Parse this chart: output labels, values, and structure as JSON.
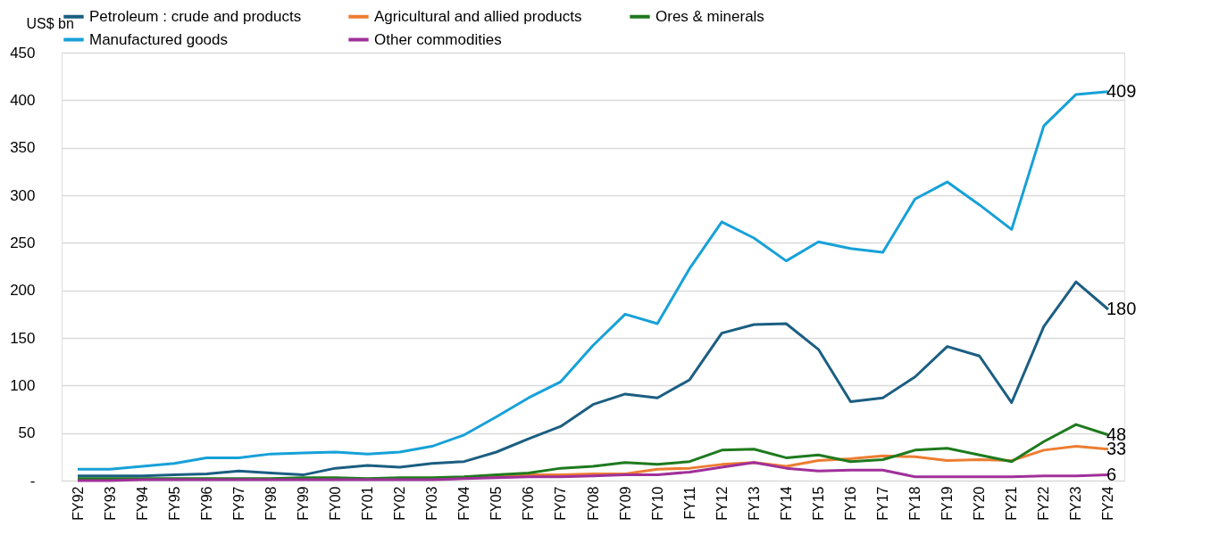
{
  "chart_data": {
    "type": "line",
    "ylabel": "US$ bn",
    "categories": [
      "FY92",
      "FY93",
      "FY94",
      "FY95",
      "FY96",
      "FY97",
      "FY98",
      "FY99",
      "FY00",
      "FY01",
      "FY02",
      "FY03",
      "FY04",
      "FY05",
      "FY06",
      "FY07",
      "FY08",
      "FY09",
      "FY10",
      "FY11",
      "FY12",
      "FY13",
      "FY14",
      "FY15",
      "FY16",
      "FY17",
      "FY18",
      "FY19",
      "FY20",
      "FY21",
      "FY22",
      "FY23",
      "FY24"
    ],
    "series": [
      {
        "name": "Petroleum : crude  and products",
        "color": "#1b5e82",
        "values": [
          5,
          5,
          5,
          6,
          7,
          10,
          8,
          6,
          13,
          16,
          14,
          18,
          20,
          30,
          44,
          57,
          80,
          91,
          87,
          106,
          155,
          164,
          165,
          138,
          83,
          87,
          109,
          141,
          131,
          82,
          162,
          209,
          180
        ],
        "value_labels": [
          null,
          null,
          null,
          null,
          null,
          null,
          null,
          null,
          null,
          null,
          null,
          null,
          null,
          null,
          null,
          null,
          null,
          null,
          null,
          null,
          null,
          null,
          null,
          null,
          null,
          null,
          null,
          null,
          null,
          null,
          null,
          null,
          "180"
        ]
      },
      {
        "name": "Agricultural and  allied products",
        "color": "#ed7d31",
        "values": [
          null,
          null,
          null,
          null,
          null,
          null,
          null,
          null,
          null,
          null,
          null,
          null,
          4,
          5,
          6,
          6,
          7,
          7,
          12,
          13,
          17,
          19,
          15,
          21,
          23,
          26,
          25,
          21,
          22,
          21,
          32,
          36,
          33
        ],
        "value_labels": [
          null,
          null,
          null,
          null,
          null,
          null,
          null,
          null,
          null,
          null,
          null,
          null,
          null,
          null,
          null,
          null,
          null,
          null,
          null,
          null,
          null,
          null,
          null,
          null,
          null,
          null,
          null,
          null,
          null,
          null,
          null,
          null,
          "33"
        ]
      },
      {
        "name": "Ores & minerals",
        "color": "#1e7a1e",
        "values": [
          2,
          2,
          2,
          2,
          2,
          2,
          2,
          3,
          3,
          2,
          3,
          3,
          4,
          6,
          8,
          13,
          15,
          19,
          17,
          20,
          32,
          33,
          24,
          27,
          20,
          22,
          32,
          34,
          27,
          20,
          41,
          59,
          48
        ],
        "value_labels": [
          null,
          null,
          null,
          null,
          null,
          null,
          null,
          null,
          null,
          null,
          null,
          null,
          null,
          null,
          null,
          null,
          null,
          null,
          null,
          null,
          null,
          null,
          null,
          null,
          null,
          null,
          null,
          null,
          null,
          null,
          null,
          null,
          "48"
        ]
      },
      {
        "name": "Manufactured goods",
        "color": "#17a1d8",
        "values": [
          12,
          12,
          15,
          18,
          24,
          24,
          28,
          29,
          30,
          28,
          30,
          36,
          48,
          67,
          87,
          104,
          142,
          175,
          165,
          223,
          272,
          255,
          231,
          251,
          244,
          240,
          296,
          314,
          290,
          264,
          373,
          406,
          409
        ],
        "value_labels": [
          null,
          null,
          null,
          null,
          null,
          null,
          null,
          null,
          null,
          null,
          null,
          null,
          null,
          null,
          null,
          null,
          null,
          null,
          null,
          null,
          null,
          null,
          null,
          null,
          null,
          null,
          null,
          null,
          null,
          null,
          null,
          null,
          "409"
        ]
      },
      {
        "name": "Other commodities",
        "color": "#a0309a",
        "values": [
          0,
          0,
          1,
          1,
          1,
          1,
          1,
          1,
          1,
          1,
          1,
          1,
          2,
          3,
          4,
          4,
          5,
          6,
          6,
          9,
          14,
          19,
          13,
          10,
          11,
          11,
          4,
          4,
          4,
          4,
          5,
          5,
          6
        ],
        "value_labels": [
          null,
          null,
          null,
          null,
          null,
          null,
          null,
          null,
          null,
          null,
          null,
          null,
          null,
          null,
          null,
          null,
          null,
          null,
          null,
          null,
          null,
          null,
          null,
          null,
          null,
          null,
          null,
          null,
          null,
          null,
          null,
          null,
          "6"
        ]
      }
    ],
    "ylim": [
      0,
      450
    ],
    "yticks": [
      {
        "value": 0,
        "label": "-"
      },
      50,
      100,
      150,
      200,
      250,
      300,
      350,
      400,
      450
    ],
    "grid": "y",
    "legend": "top",
    "marker": "none",
    "line_style": "solid"
  }
}
